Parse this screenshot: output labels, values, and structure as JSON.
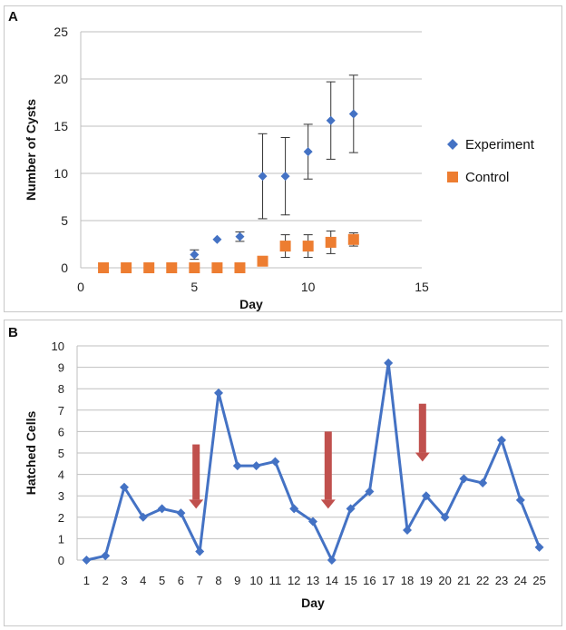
{
  "figure": {
    "panel_a_label": "A",
    "panel_b_label": "B"
  },
  "chart_data": [
    {
      "id": "A",
      "type": "scatter",
      "xlabel": "Day",
      "ylabel": "Number of Cysts",
      "xlim": [
        0,
        15
      ],
      "ylim": [
        0,
        25
      ],
      "xticks": [
        0,
        5,
        10,
        15
      ],
      "yticks": [
        0,
        5,
        10,
        15,
        20,
        25
      ],
      "grid": true,
      "legend_position": "right",
      "series": [
        {
          "name": "Experiment",
          "marker": "diamond",
          "color": "#4472C4",
          "points": [
            {
              "x": 5,
              "y": 1.4,
              "err": 0.5
            },
            {
              "x": 6,
              "y": 3.0,
              "err": 0
            },
            {
              "x": 7,
              "y": 3.3,
              "err": 0.5
            },
            {
              "x": 8,
              "y": 9.7,
              "err": 4.5
            },
            {
              "x": 9,
              "y": 9.7,
              "err": 4.1
            },
            {
              "x": 10,
              "y": 12.3,
              "err": 2.9
            },
            {
              "x": 11,
              "y": 15.6,
              "err": 4.1
            },
            {
              "x": 12,
              "y": 16.3,
              "err": 4.1
            }
          ]
        },
        {
          "name": "Control",
          "marker": "square",
          "color": "#ED7D31",
          "points": [
            {
              "x": 1,
              "y": 0,
              "err": 0
            },
            {
              "x": 2,
              "y": 0,
              "err": 0
            },
            {
              "x": 3,
              "y": 0,
              "err": 0
            },
            {
              "x": 4,
              "y": 0,
              "err": 0
            },
            {
              "x": 5,
              "y": 0,
              "err": 0
            },
            {
              "x": 6,
              "y": 0,
              "err": 0
            },
            {
              "x": 7,
              "y": 0,
              "err": 0
            },
            {
              "x": 8,
              "y": 0.7,
              "err": 0
            },
            {
              "x": 9,
              "y": 2.3,
              "err": 1.2
            },
            {
              "x": 10,
              "y": 2.3,
              "err": 1.2
            },
            {
              "x": 11,
              "y": 2.7,
              "err": 1.2
            },
            {
              "x": 12,
              "y": 3.0,
              "err": 0.7
            }
          ]
        }
      ]
    },
    {
      "id": "B",
      "type": "line",
      "xlabel": "Day",
      "ylabel": "Hatched Cells",
      "ylim": [
        0,
        10
      ],
      "yticks": [
        0,
        1,
        2,
        3,
        4,
        5,
        6,
        7,
        8,
        9,
        10
      ],
      "grid": true,
      "categories": [
        "1",
        "2",
        "3",
        "4",
        "5",
        "6",
        "7",
        "8",
        "9",
        "10",
        "11",
        "12",
        "13",
        "14",
        "15",
        "16",
        "17",
        "18",
        "19",
        "20",
        "21",
        "22",
        "23",
        "24",
        "25"
      ],
      "series": [
        {
          "name": "Hatched Cells",
          "color": "#4472C4",
          "values": [
            0,
            0.2,
            3.4,
            2.0,
            2.4,
            2.2,
            0.4,
            7.8,
            4.4,
            4.4,
            4.6,
            2.4,
            1.8,
            0,
            2.4,
            3.2,
            9.2,
            1.4,
            3.0,
            2.0,
            3.8,
            3.6,
            5.6,
            2.8,
            0.6
          ]
        }
      ],
      "arrows": [
        {
          "day": 7,
          "from": 5.4,
          "to": 2.4,
          "color": "#C0504D"
        },
        {
          "day": 14,
          "from": 6.0,
          "to": 2.4,
          "color": "#C0504D"
        },
        {
          "day": 19,
          "from": 7.3,
          "to": 4.6,
          "color": "#C0504D"
        }
      ]
    }
  ]
}
